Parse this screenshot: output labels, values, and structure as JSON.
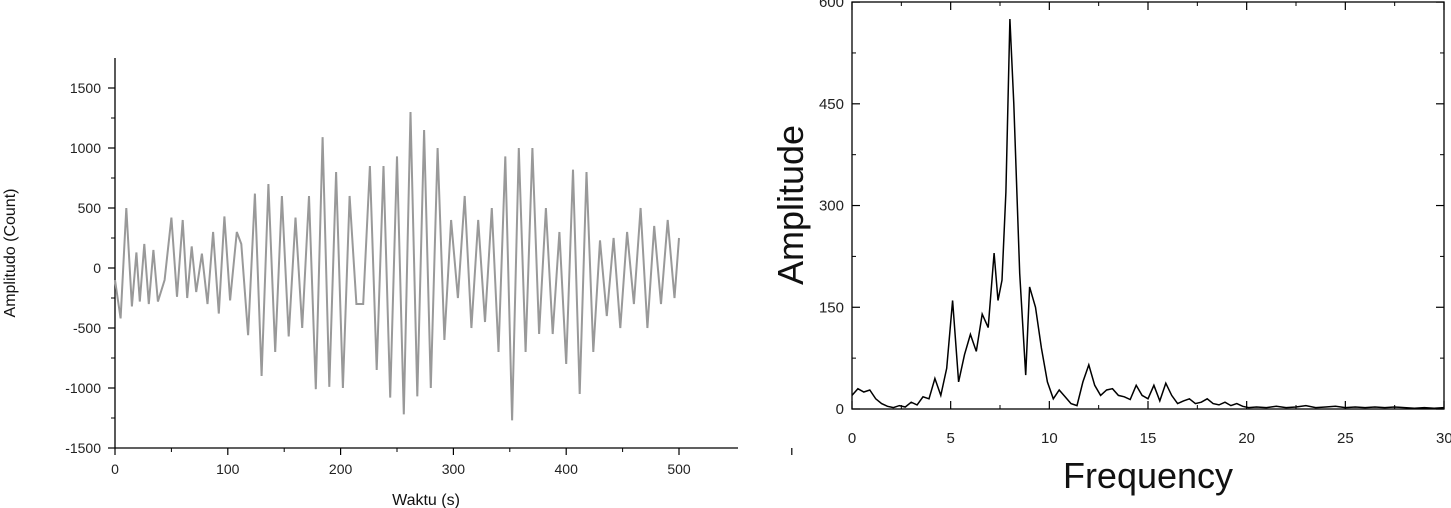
{
  "chart_data": [
    {
      "type": "line",
      "title": "",
      "xlabel": "Waktu (s)",
      "ylabel": "Amplitudo (Count)",
      "xlim": [
        0,
        500
      ],
      "ylim": [
        -1500,
        1500
      ],
      "x_ticks": [
        0,
        100,
        200,
        300,
        400,
        500
      ],
      "y_ticks": [
        1500,
        1000,
        500,
        0,
        -500,
        -1000,
        -1500
      ],
      "grid": false,
      "line_color": "#999999",
      "series": [
        {
          "x": [
            0,
            5,
            10,
            15,
            19,
            22,
            26,
            30,
            34,
            38,
            44,
            50,
            55,
            60,
            64,
            68,
            72,
            77,
            82,
            87,
            92,
            97,
            102,
            108,
            112,
            118,
            124,
            130,
            136,
            142,
            148,
            154,
            160,
            166,
            172,
            178,
            184,
            190,
            196,
            202,
            208,
            214,
            220,
            226,
            232,
            238,
            244,
            250,
            256,
            262,
            268,
            274,
            280,
            286,
            292,
            298,
            304,
            310,
            316,
            322,
            328,
            334,
            340,
            346,
            352,
            358,
            364,
            370,
            376,
            382,
            388,
            394,
            400,
            406,
            412,
            418,
            424,
            430,
            436,
            442,
            448,
            454,
            460,
            466,
            472,
            478,
            484,
            490,
            496,
            500
          ],
          "values": [
            -100,
            -420,
            500,
            -320,
            130,
            -280,
            200,
            -300,
            150,
            -280,
            -100,
            420,
            -240,
            400,
            -250,
            180,
            -200,
            120,
            -300,
            300,
            -380,
            430,
            -270,
            300,
            200,
            -560,
            620,
            -900,
            700,
            -700,
            600,
            -570,
            420,
            -500,
            600,
            -1010,
            1090,
            -990,
            800,
            -1000,
            600,
            -300,
            -300,
            850,
            -850,
            850,
            -1080,
            930,
            -1220,
            1300,
            -1070,
            1150,
            -1000,
            1000,
            -600,
            400,
            -250,
            600,
            -500,
            400,
            -450,
            500,
            -700,
            930,
            -1270,
            1000,
            -700,
            1000,
            -550,
            500,
            -550,
            300,
            -800,
            820,
            -1050,
            800,
            -700,
            230,
            -400,
            250,
            -500,
            300,
            -300,
            500,
            -500,
            350,
            -300,
            400,
            -250,
            250
          ]
        }
      ]
    },
    {
      "type": "line",
      "title": "",
      "xlabel": "Frequency",
      "ylabel": "Amplitude",
      "xlim": [
        0,
        30
      ],
      "ylim": [
        0,
        600
      ],
      "x_ticks": [
        0,
        5,
        10,
        15,
        20,
        25,
        30
      ],
      "y_ticks": [
        0,
        150,
        300,
        450,
        600
      ],
      "x_tick_labels": [
        "0",
        "5",
        "10",
        "15",
        "20",
        "25",
        "30"
      ],
      "y_tick_labels": [
        "0",
        "150",
        "300",
        "450",
        "600"
      ],
      "grid": false,
      "line_color": "#000000",
      "series": [
        {
          "x": [
            0,
            0.3,
            0.6,
            0.9,
            1.2,
            1.5,
            1.8,
            2.1,
            2.4,
            2.7,
            3.0,
            3.3,
            3.6,
            3.9,
            4.2,
            4.5,
            4.8,
            5.1,
            5.4,
            5.7,
            6.0,
            6.3,
            6.6,
            6.9,
            7.2,
            7.4,
            7.6,
            7.8,
            8.0,
            8.2,
            8.5,
            8.8,
            9.0,
            9.3,
            9.6,
            9.9,
            10.2,
            10.5,
            10.8,
            11.1,
            11.4,
            11.7,
            12.0,
            12.3,
            12.6,
            12.9,
            13.2,
            13.5,
            13.8,
            14.1,
            14.4,
            14.7,
            15.0,
            15.3,
            15.6,
            15.9,
            16.2,
            16.5,
            16.8,
            17.1,
            17.4,
            17.7,
            18.0,
            18.3,
            18.6,
            18.9,
            19.2,
            19.5,
            19.8,
            20.1,
            20.5,
            21.0,
            21.5,
            22.0,
            22.5,
            23.0,
            23.5,
            24.0,
            24.5,
            25.0,
            25.5,
            26.0,
            26.5,
            27.0,
            27.5,
            28.0,
            28.5,
            29.0,
            29.5,
            30.0
          ],
          "values": [
            20,
            30,
            25,
            28,
            15,
            8,
            4,
            2,
            5,
            3,
            10,
            6,
            18,
            15,
            45,
            20,
            60,
            160,
            40,
            80,
            110,
            85,
            140,
            120,
            230,
            160,
            190,
            320,
            575,
            450,
            200,
            50,
            180,
            150,
            90,
            40,
            15,
            28,
            18,
            8,
            5,
            40,
            65,
            35,
            20,
            28,
            30,
            20,
            18,
            14,
            35,
            20,
            15,
            35,
            12,
            38,
            20,
            8,
            12,
            15,
            8,
            10,
            15,
            8,
            6,
            10,
            5,
            8,
            4,
            2,
            3,
            2,
            4,
            2,
            3,
            5,
            2,
            3,
            4,
            2,
            3,
            2,
            3,
            2,
            3,
            2,
            1,
            2,
            1,
            2
          ]
        }
      ]
    }
  ]
}
